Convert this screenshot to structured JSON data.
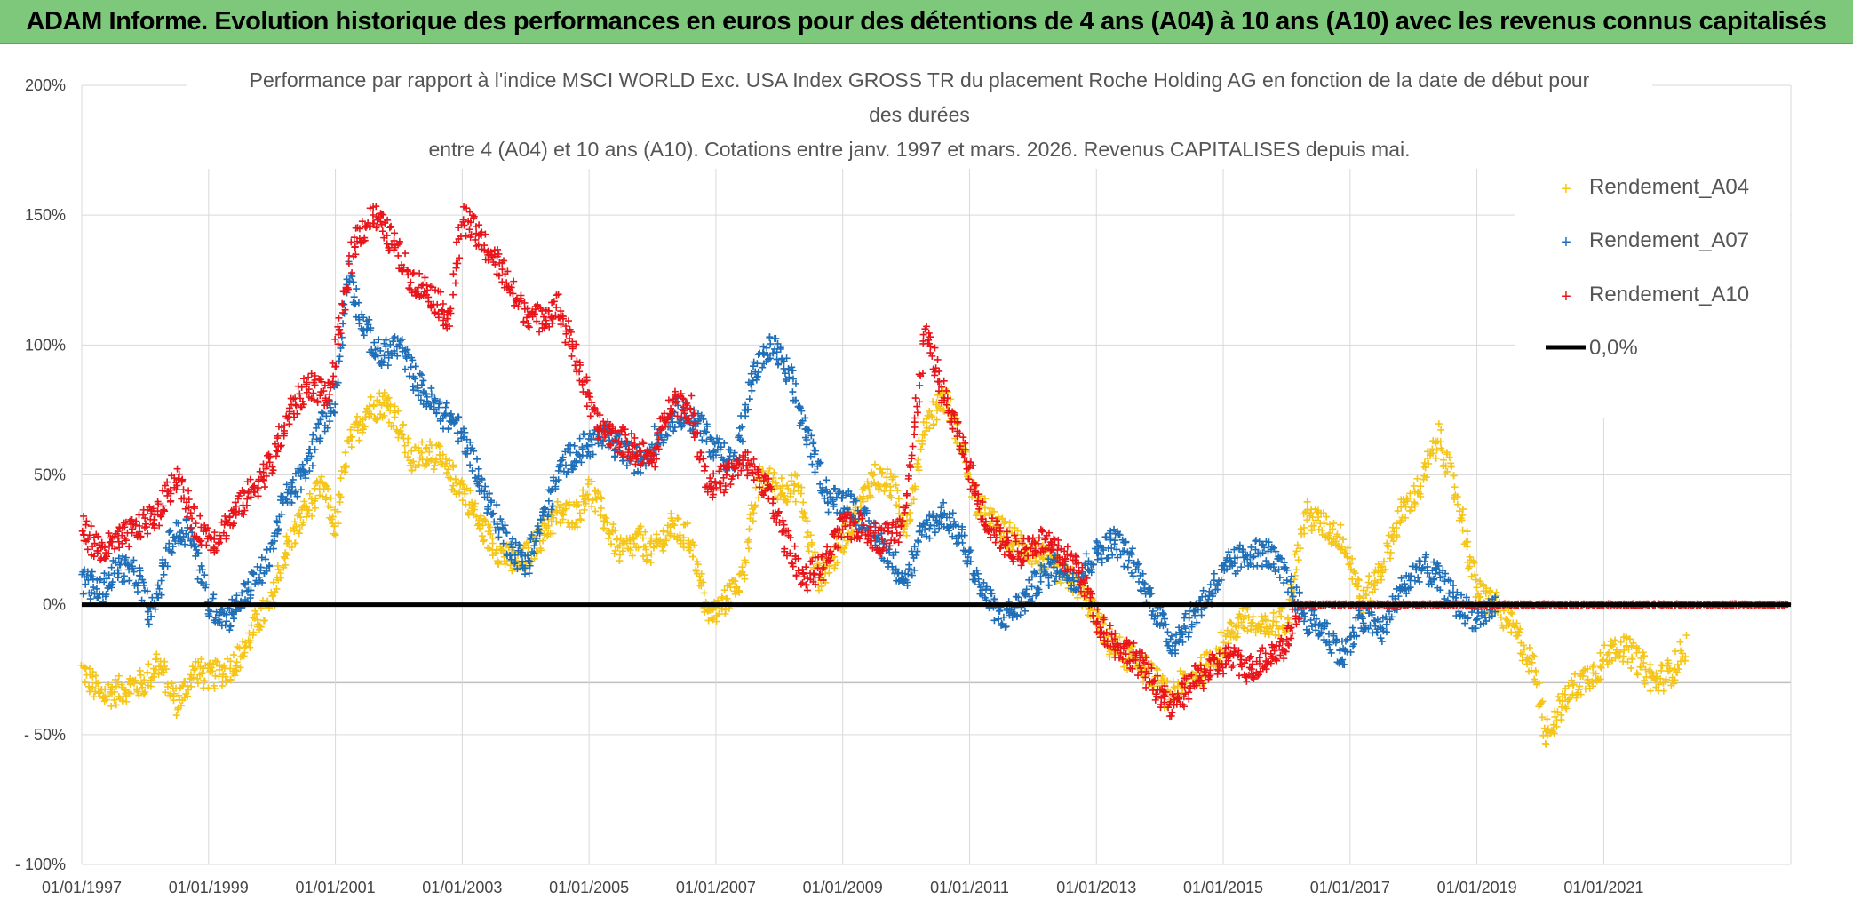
{
  "banner": {
    "title": "ADAM Informe. Evolution historique des performances en euros pour des détentions de 4 ans (A04) à 10 ans (A10) avec les revenus connus capitalisés"
  },
  "chart_data": {
    "type": "scatter",
    "title_lines": [
      "Performance par rapport à l'indice MSCI WORLD Exc. USA Index GROSS TR  du placement Roche Holding AG en fonction de la date de début pour",
      "des durées",
      "entre 4 (A04) et 10 ans (A10). Cotations entre janv. 1997 et mars. 2026. Revenus CAPITALISES depuis mai."
    ],
    "x_range": [
      1997.0,
      2023.95
    ],
    "y_range": [
      -100,
      200
    ],
    "y_ticks": [
      {
        "value": 200,
        "label": "200%"
      },
      {
        "value": 150,
        "label": "150%"
      },
      {
        "value": 100,
        "label": "100%"
      },
      {
        "value": 50,
        "label": "50%"
      },
      {
        "value": 0,
        "label": "0%"
      },
      {
        "value": -50,
        "label": "- 50%"
      },
      {
        "value": -100,
        "label": "- 100%"
      }
    ],
    "x_ticks": [
      {
        "value": 1997,
        "label": "01/01/1997"
      },
      {
        "value": 1999,
        "label": "01/01/1999"
      },
      {
        "value": 2001,
        "label": "01/01/2001"
      },
      {
        "value": 2003,
        "label": "01/01/2003"
      },
      {
        "value": 2005,
        "label": "01/01/2005"
      },
      {
        "value": 2007,
        "label": "01/01/2007"
      },
      {
        "value": 2009,
        "label": "01/01/2009"
      },
      {
        "value": 2011,
        "label": "01/01/2011"
      },
      {
        "value": 2013,
        "label": "01/01/2013"
      },
      {
        "value": 2015,
        "label": "01/01/2015"
      },
      {
        "value": 2017,
        "label": "01/01/2017"
      },
      {
        "value": 2019,
        "label": "01/01/2019"
      },
      {
        "value": 2021,
        "label": "01/01/2021"
      }
    ],
    "series": [
      {
        "name": "Rendement_A04",
        "color": "#f5c518",
        "points": [
          [
            1997.0,
            -25
          ],
          [
            1997.3,
            -35
          ],
          [
            1997.7,
            -32
          ],
          [
            1998.0,
            -30
          ],
          [
            1998.2,
            -22
          ],
          [
            1998.5,
            -38
          ],
          [
            1998.8,
            -25
          ],
          [
            1999.0,
            -28
          ],
          [
            1999.3,
            -25
          ],
          [
            1999.5,
            -20
          ],
          [
            1999.8,
            -5
          ],
          [
            2000.0,
            0
          ],
          [
            2000.2,
            20
          ],
          [
            2000.5,
            35
          ],
          [
            2000.8,
            45
          ],
          [
            2001.0,
            30
          ],
          [
            2001.2,
            60
          ],
          [
            2001.5,
            75
          ],
          [
            2001.8,
            78
          ],
          [
            2002.0,
            70
          ],
          [
            2002.2,
            55
          ],
          [
            2002.5,
            60
          ],
          [
            2002.8,
            50
          ],
          [
            2003.0,
            45
          ],
          [
            2003.3,
            30
          ],
          [
            2003.6,
            20
          ],
          [
            2003.9,
            15
          ],
          [
            2004.2,
            25
          ],
          [
            2004.5,
            35
          ],
          [
            2004.8,
            35
          ],
          [
            2005.0,
            45
          ],
          [
            2005.3,
            30
          ],
          [
            2005.5,
            20
          ],
          [
            2005.8,
            25
          ],
          [
            2006.0,
            20
          ],
          [
            2006.3,
            30
          ],
          [
            2006.6,
            25
          ],
          [
            2006.9,
            -5
          ],
          [
            2007.1,
            0
          ],
          [
            2007.4,
            10
          ],
          [
            2007.7,
            50
          ],
          [
            2008.0,
            45
          ],
          [
            2008.3,
            45
          ],
          [
            2008.6,
            10
          ],
          [
            2008.9,
            20
          ],
          [
            2009.2,
            35
          ],
          [
            2009.5,
            50
          ],
          [
            2009.8,
            45
          ],
          [
            2010.0,
            30
          ],
          [
            2010.3,
            70
          ],
          [
            2010.6,
            80
          ],
          [
            2010.9,
            60
          ],
          [
            2011.1,
            40
          ],
          [
            2011.4,
            30
          ],
          [
            2011.7,
            25
          ],
          [
            2012.0,
            20
          ],
          [
            2012.3,
            15
          ],
          [
            2012.6,
            10
          ],
          [
            2012.9,
            0
          ],
          [
            2013.2,
            -15
          ],
          [
            2013.5,
            -20
          ],
          [
            2013.8,
            -25
          ],
          [
            2014.1,
            -35
          ],
          [
            2014.4,
            -30
          ],
          [
            2014.7,
            -25
          ],
          [
            2015.0,
            -15
          ],
          [
            2015.3,
            -5
          ],
          [
            2015.6,
            -10
          ],
          [
            2016.0,
            -5
          ],
          [
            2016.3,
            35
          ],
          [
            2016.6,
            30
          ],
          [
            2016.9,
            25
          ],
          [
            2017.2,
            0
          ],
          [
            2017.5,
            15
          ],
          [
            2017.8,
            35
          ],
          [
            2018.1,
            45
          ],
          [
            2018.4,
            65
          ],
          [
            2018.7,
            40
          ],
          [
            2019.0,
            5
          ],
          [
            2019.3,
            0
          ],
          [
            2019.6,
            -10
          ],
          [
            2019.9,
            -25
          ],
          [
            2020.1,
            -50
          ],
          [
            2020.3,
            -40
          ],
          [
            2020.6,
            -30
          ],
          [
            2020.9,
            -25
          ],
          [
            2021.2,
            -15
          ],
          [
            2021.5,
            -20
          ],
          [
            2021.8,
            -30
          ],
          [
            2022.1,
            -25
          ],
          [
            2022.3,
            -15
          ]
        ]
      },
      {
        "name": "Rendement_A07",
        "color": "#1f6fb8",
        "points": [
          [
            1997.0,
            10
          ],
          [
            1997.3,
            5
          ],
          [
            1997.6,
            15
          ],
          [
            1997.9,
            10
          ],
          [
            1998.1,
            -5
          ],
          [
            1998.4,
            25
          ],
          [
            1998.7,
            30
          ],
          [
            1999.0,
            0
          ],
          [
            1999.3,
            -5
          ],
          [
            1999.6,
            5
          ],
          [
            1999.9,
            15
          ],
          [
            2000.2,
            40
          ],
          [
            2000.5,
            50
          ],
          [
            2000.8,
            70
          ],
          [
            2001.0,
            80
          ],
          [
            2001.2,
            130
          ],
          [
            2001.4,
            110
          ],
          [
            2001.7,
            95
          ],
          [
            2002.0,
            100
          ],
          [
            2002.3,
            85
          ],
          [
            2002.6,
            75
          ],
          [
            2002.9,
            70
          ],
          [
            2003.1,
            60
          ],
          [
            2003.4,
            40
          ],
          [
            2003.7,
            25
          ],
          [
            2004.0,
            15
          ],
          [
            2004.3,
            35
          ],
          [
            2004.6,
            55
          ],
          [
            2004.9,
            60
          ],
          [
            2005.2,
            65
          ],
          [
            2005.5,
            60
          ],
          [
            2005.8,
            55
          ],
          [
            2006.1,
            65
          ],
          [
            2006.4,
            75
          ],
          [
            2006.7,
            70
          ],
          [
            2007.0,
            60
          ],
          [
            2007.3,
            55
          ],
          [
            2007.6,
            90
          ],
          [
            2007.9,
            100
          ],
          [
            2008.2,
            85
          ],
          [
            2008.5,
            60
          ],
          [
            2008.8,
            40
          ],
          [
            2009.1,
            40
          ],
          [
            2009.4,
            30
          ],
          [
            2009.7,
            20
          ],
          [
            2010.0,
            10
          ],
          [
            2010.3,
            30
          ],
          [
            2010.6,
            35
          ],
          [
            2010.9,
            25
          ],
          [
            2011.2,
            5
          ],
          [
            2011.5,
            -5
          ],
          [
            2011.8,
            0
          ],
          [
            2012.1,
            10
          ],
          [
            2012.4,
            15
          ],
          [
            2012.7,
            10
          ],
          [
            2013.0,
            20
          ],
          [
            2013.3,
            25
          ],
          [
            2013.6,
            15
          ],
          [
            2013.9,
            0
          ],
          [
            2014.2,
            -15
          ],
          [
            2014.5,
            -5
          ],
          [
            2014.8,
            5
          ],
          [
            2015.1,
            15
          ],
          [
            2015.4,
            20
          ],
          [
            2015.7,
            20
          ],
          [
            2016.0,
            10
          ],
          [
            2016.3,
            -5
          ],
          [
            2016.6,
            -10
          ],
          [
            2016.9,
            -20
          ],
          [
            2017.2,
            -5
          ],
          [
            2017.5,
            -10
          ],
          [
            2017.8,
            5
          ],
          [
            2018.1,
            15
          ],
          [
            2018.4,
            10
          ],
          [
            2018.7,
            0
          ],
          [
            2019.0,
            -5
          ],
          [
            2019.3,
            0
          ]
        ]
      },
      {
        "name": "Rendement_A10",
        "color": "#e8151b",
        "points": [
          [
            1997.0,
            30
          ],
          [
            1997.3,
            20
          ],
          [
            1997.6,
            25
          ],
          [
            1997.9,
            30
          ],
          [
            1998.2,
            35
          ],
          [
            1998.5,
            50
          ],
          [
            1998.8,
            30
          ],
          [
            1999.1,
            25
          ],
          [
            1999.4,
            35
          ],
          [
            1999.7,
            45
          ],
          [
            2000.0,
            55
          ],
          [
            2000.3,
            75
          ],
          [
            2000.6,
            85
          ],
          [
            2000.9,
            80
          ],
          [
            2001.1,
            110
          ],
          [
            2001.3,
            140
          ],
          [
            2001.6,
            150
          ],
          [
            2001.9,
            140
          ],
          [
            2002.2,
            125
          ],
          [
            2002.5,
            120
          ],
          [
            2002.8,
            110
          ],
          [
            2003.0,
            150
          ],
          [
            2003.3,
            140
          ],
          [
            2003.6,
            130
          ],
          [
            2003.9,
            115
          ],
          [
            2004.2,
            110
          ],
          [
            2004.5,
            115
          ],
          [
            2004.8,
            95
          ],
          [
            2005.1,
            70
          ],
          [
            2005.4,
            65
          ],
          [
            2005.7,
            60
          ],
          [
            2006.0,
            55
          ],
          [
            2006.3,
            80
          ],
          [
            2006.6,
            75
          ],
          [
            2006.9,
            45
          ],
          [
            2007.2,
            50
          ],
          [
            2007.5,
            55
          ],
          [
            2007.8,
            45
          ],
          [
            2008.1,
            25
          ],
          [
            2008.4,
            10
          ],
          [
            2008.7,
            15
          ],
          [
            2009.0,
            30
          ],
          [
            2009.3,
            30
          ],
          [
            2009.6,
            25
          ],
          [
            2009.9,
            30
          ],
          [
            2010.1,
            60
          ],
          [
            2010.3,
            105
          ],
          [
            2010.6,
            80
          ],
          [
            2010.9,
            60
          ],
          [
            2011.2,
            35
          ],
          [
            2011.5,
            25
          ],
          [
            2011.8,
            20
          ],
          [
            2012.1,
            25
          ],
          [
            2012.4,
            20
          ],
          [
            2012.7,
            15
          ],
          [
            2013.0,
            -5
          ],
          [
            2013.3,
            -15
          ],
          [
            2013.6,
            -20
          ],
          [
            2013.9,
            -30
          ],
          [
            2014.2,
            -40
          ],
          [
            2014.5,
            -30
          ],
          [
            2014.8,
            -25
          ],
          [
            2015.1,
            -20
          ],
          [
            2015.4,
            -25
          ],
          [
            2015.7,
            -20
          ],
          [
            2016.0,
            -15
          ],
          [
            2016.2,
            0
          ],
          [
            2017.0,
            0
          ],
          [
            2018.0,
            0
          ],
          [
            2019.0,
            0
          ],
          [
            2020.0,
            0
          ],
          [
            2021.0,
            0
          ],
          [
            2022.0,
            0
          ],
          [
            2023.0,
            0
          ],
          [
            2023.9,
            0
          ]
        ]
      }
    ],
    "reference_line": {
      "name": "0,0%",
      "value": 0,
      "color": "#000000"
    },
    "legend": {
      "position": "top-right",
      "items": [
        "Rendement_A04",
        "Rendement_A07",
        "Rendement_A10",
        "0,0%"
      ]
    }
  }
}
